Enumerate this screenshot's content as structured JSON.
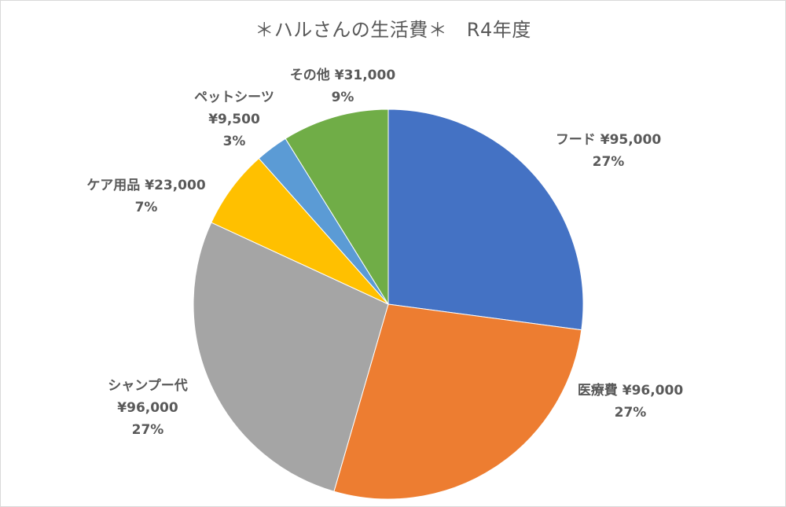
{
  "chart_data": {
    "type": "pie",
    "title": "＊ハルさんの生活費＊　R4年度",
    "slices": [
      {
        "label": "フード",
        "value_text": "¥95,000",
        "value": 95000,
        "percent_text": "27%",
        "color": "#4472C4"
      },
      {
        "label": "医療費",
        "value_text": "¥96,000",
        "value": 96000,
        "percent_text": "27%",
        "color": "#ED7D31"
      },
      {
        "label": "シャンプー代",
        "value_text": "¥96,000",
        "value": 96000,
        "percent_text": "27%",
        "color": "#A5A5A5"
      },
      {
        "label": "ケア用品",
        "value_text": "¥23,000",
        "value": 23000,
        "percent_text": "7%",
        "color": "#FFC000"
      },
      {
        "label": "ペットシーツ",
        "value_text": "¥9,500",
        "value": 9500,
        "percent_text": "3%",
        "color": "#5B9BD5"
      },
      {
        "label": "その他",
        "value_text": "¥31,000",
        "value": 31000,
        "percent_text": "9%",
        "color": "#70AD47"
      }
    ],
    "legend": "none",
    "grid": false
  }
}
